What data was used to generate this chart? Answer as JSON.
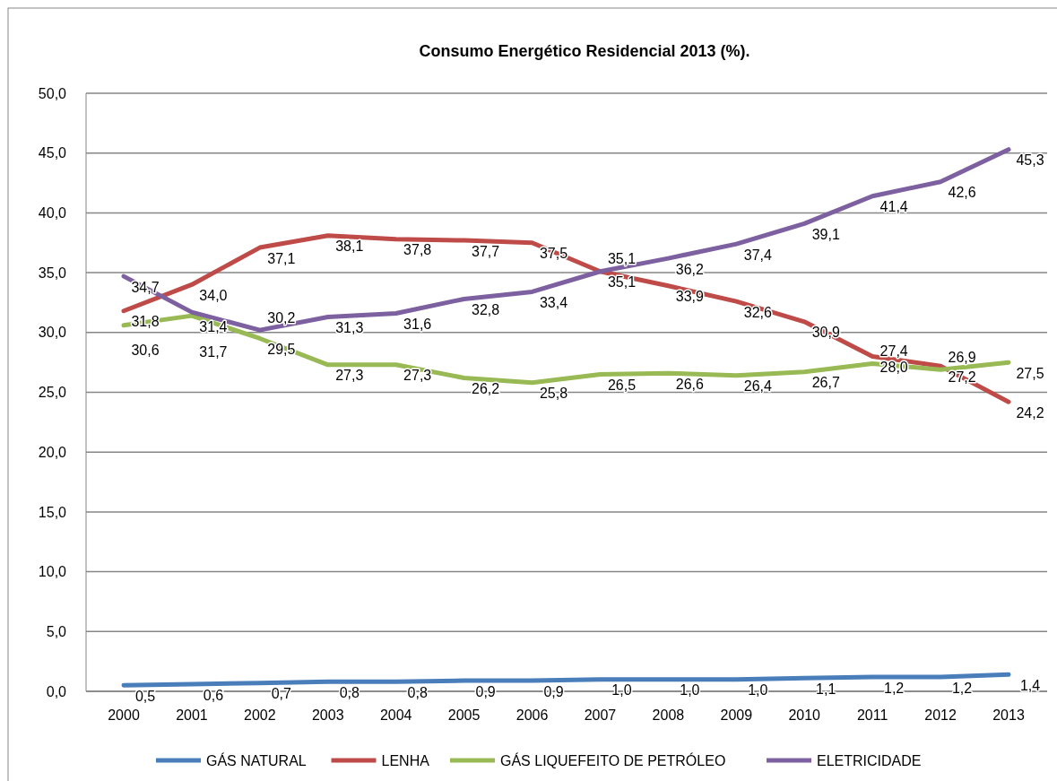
{
  "chart_data": {
    "type": "line",
    "title": "Consumo Energético Residencial 2013 (%).",
    "categories": [
      "2000",
      "2001",
      "2002",
      "2003",
      "2004",
      "2005",
      "2006",
      "2007",
      "2008",
      "2009",
      "2010",
      "2011",
      "2012",
      "2013"
    ],
    "series": [
      {
        "name": "GÁS NATURAL",
        "color": "#4a7ebb",
        "values": [
          0.5,
          0.6,
          0.7,
          0.8,
          0.8,
          0.9,
          0.9,
          1.0,
          1.0,
          1.0,
          1.1,
          1.2,
          1.2,
          1.4
        ],
        "value_labels": [
          "0,5",
          "0,6",
          "0,7",
          "0,8",
          "0,8",
          "0,9",
          "0,9",
          "1,0",
          "1,0",
          "1,0",
          "1,1",
          "1,2",
          "1,2",
          "1,4"
        ]
      },
      {
        "name": "LENHA",
        "color": "#be4b48",
        "values": [
          31.8,
          34.0,
          37.1,
          38.1,
          37.8,
          37.7,
          37.5,
          35.1,
          33.9,
          32.6,
          30.9,
          28.0,
          27.2,
          24.2
        ],
        "value_labels": [
          "31,8",
          "34,0",
          "37,1",
          "38,1",
          "37,8",
          "37,7",
          "37,5",
          "35,1",
          "33,9",
          "32,6",
          "30,9",
          "28,0",
          "27,2",
          "24,2"
        ]
      },
      {
        "name": "GÁS LIQUEFEITO DE PETRÓLEO",
        "color": "#98b954",
        "values": [
          30.6,
          31.4,
          29.5,
          27.3,
          27.3,
          26.2,
          25.8,
          26.5,
          26.6,
          26.4,
          26.7,
          27.4,
          26.9,
          27.5
        ],
        "value_labels": [
          "30,6",
          "31,4",
          "29,5",
          "27,3",
          "27,3",
          "26,2",
          "25,8",
          "26,5",
          "26,6",
          "26,4",
          "26,7",
          "27,4",
          "26,9",
          "27,5"
        ]
      },
      {
        "name": "ELETRICIDADE",
        "color": "#7d60a0",
        "values": [
          34.7,
          31.7,
          30.2,
          31.3,
          31.6,
          32.8,
          33.4,
          35.1,
          36.2,
          37.4,
          39.1,
          41.4,
          42.6,
          45.3
        ],
        "value_labels": [
          "34,7",
          "31,7",
          "30,2",
          "31,3",
          "31,6",
          "32,8",
          "33,4",
          "35,1",
          "36,2",
          "37,4",
          "39,1",
          "41,4",
          "42,6",
          "45,3"
        ]
      }
    ],
    "ylim": [
      0,
      50
    ],
    "yticks": [
      {
        "value": 0,
        "label": "0,0"
      },
      {
        "value": 5,
        "label": "5,0"
      },
      {
        "value": 10,
        "label": "10,0"
      },
      {
        "value": 15,
        "label": "15,0"
      },
      {
        "value": 20,
        "label": "20,0"
      },
      {
        "value": 25,
        "label": "25,0"
      },
      {
        "value": 30,
        "label": "30,0"
      },
      {
        "value": 35,
        "label": "35,0"
      },
      {
        "value": 40,
        "label": "40,0"
      },
      {
        "value": 45,
        "label": "45,0"
      },
      {
        "value": 50,
        "label": "50,0"
      }
    ],
    "grid": "y",
    "legend": "bottom",
    "marker": "none",
    "line_style": "solid"
  }
}
